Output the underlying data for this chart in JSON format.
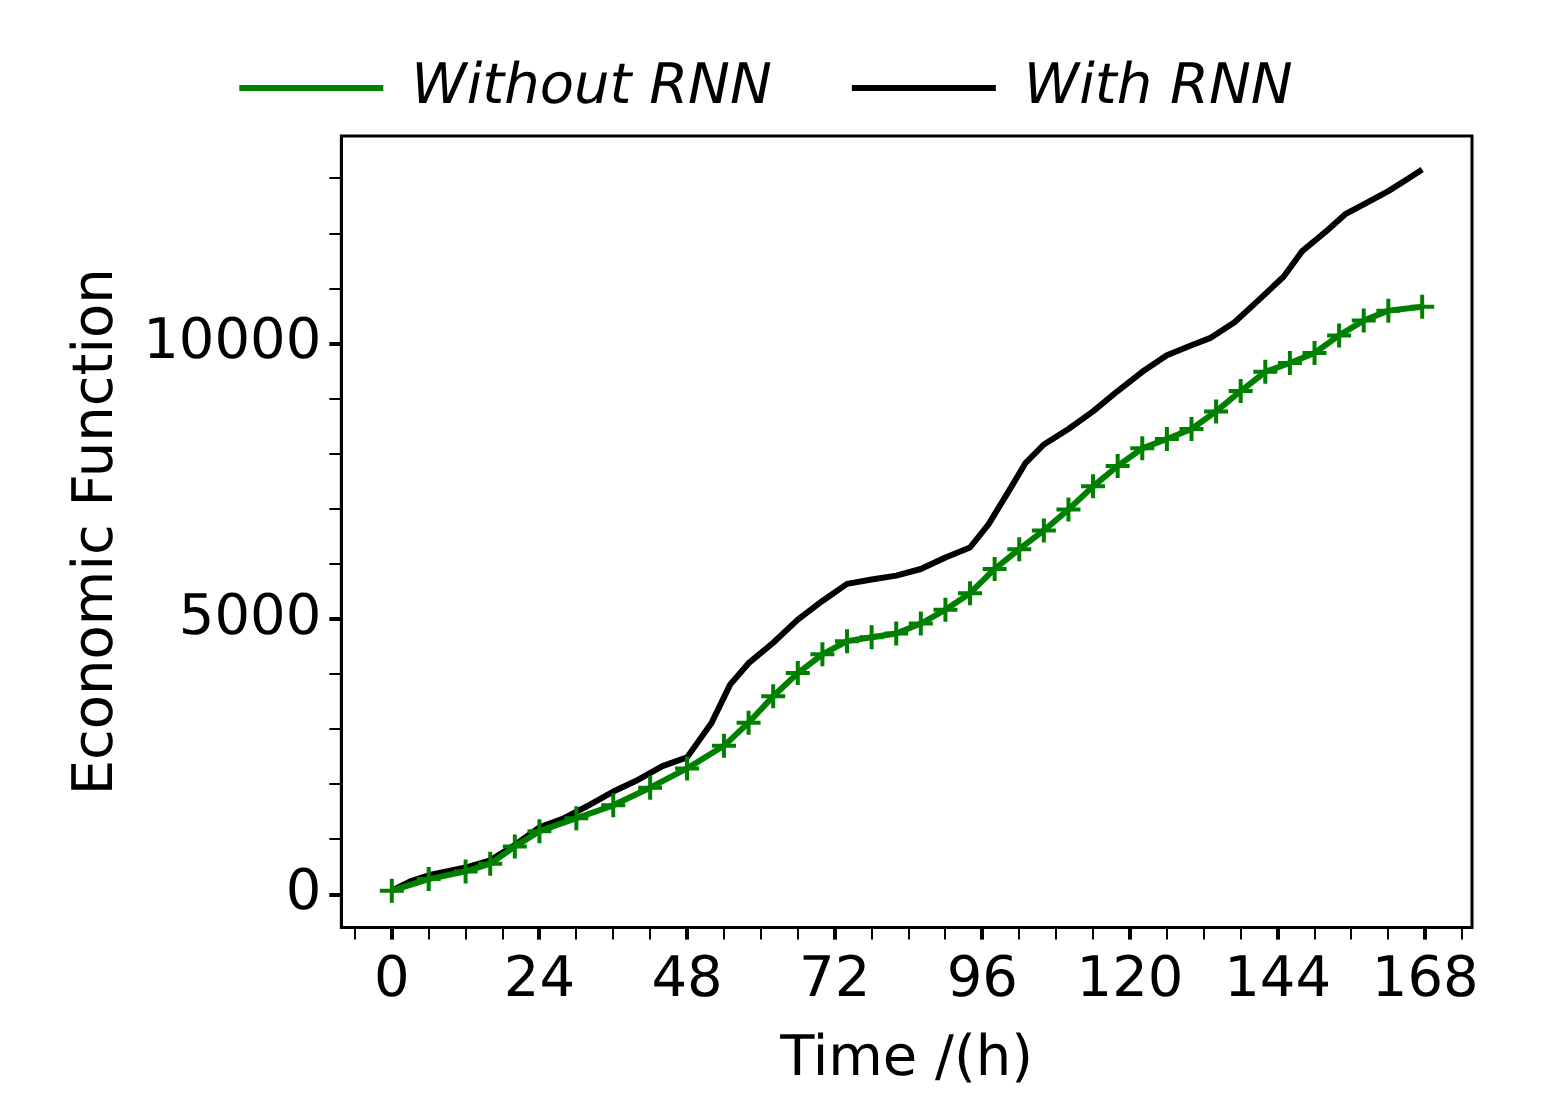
{
  "chart_data": {
    "type": "line",
    "xlabel": "Time /(h)",
    "ylabel": "Economic Function",
    "xlim": [
      -8.2,
      175.6
    ],
    "ylim": [
      -600,
      13770
    ],
    "xticks": [
      {
        "value": -6,
        "label": null
      },
      0,
      {
        "value": 6,
        "label": null
      },
      {
        "value": 12,
        "label": null
      },
      {
        "value": 18,
        "label": null
      },
      24,
      {
        "value": 30,
        "label": null
      },
      {
        "value": 36,
        "label": null
      },
      {
        "value": 42,
        "label": null
      },
      48,
      {
        "value": 54,
        "label": null
      },
      {
        "value": 60,
        "label": null
      },
      {
        "value": 66,
        "label": null
      },
      72,
      {
        "value": 78,
        "label": null
      },
      {
        "value": 84,
        "label": null
      },
      {
        "value": 90,
        "label": null
      },
      96,
      {
        "value": 102,
        "label": null
      },
      {
        "value": 108,
        "label": null
      },
      {
        "value": 114,
        "label": null
      },
      120,
      {
        "value": 126,
        "label": null
      },
      {
        "value": 132,
        "label": null
      },
      {
        "value": 138,
        "label": null
      },
      144,
      {
        "value": 150,
        "label": null
      },
      {
        "value": 156,
        "label": null
      },
      {
        "value": 162,
        "label": null
      },
      168,
      {
        "value": 174,
        "label": null
      }
    ],
    "yticks": [
      0,
      {
        "value": 1000,
        "label": null
      },
      {
        "value": 2000,
        "label": null
      },
      {
        "value": 3000,
        "label": null
      },
      {
        "value": 4000,
        "label": null
      },
      5000,
      {
        "value": 6000,
        "label": null
      },
      {
        "value": 7000,
        "label": null
      },
      {
        "value": 8000,
        "label": null
      },
      {
        "value": 9000,
        "label": null
      },
      10000,
      {
        "value": 11000,
        "label": null
      },
      {
        "value": 12000,
        "label": null
      },
      {
        "value": 13000,
        "label": null
      }
    ],
    "grid": false,
    "legend": "top",
    "series": [
      {
        "name": "Without RNN",
        "color": "#008000",
        "marker": "cross",
        "x": [
          0,
          6,
          12,
          16,
          20,
          24,
          30,
          36,
          42,
          48,
          54,
          58,
          62,
          66,
          70,
          74,
          78,
          82,
          86,
          90,
          94,
          98,
          102,
          106,
          110,
          114,
          118,
          122,
          126,
          130,
          134,
          138,
          142,
          146,
          150,
          154,
          158,
          162,
          167.5
        ],
        "values": [
          70,
          280,
          420,
          560,
          870,
          1150,
          1385,
          1620,
          1940,
          2290,
          2700,
          3120,
          3600,
          4020,
          4360,
          4600,
          4670,
          4740,
          4920,
          5170,
          5470,
          5910,
          6270,
          6610,
          6990,
          7410,
          7780,
          8100,
          8270,
          8450,
          8770,
          9140,
          9490,
          9650,
          9830,
          10150,
          10420,
          10600,
          10670
        ]
      },
      {
        "name": "With RNN",
        "color": "#000000",
        "marker": "none",
        "x": [
          0,
          3,
          6,
          12,
          16,
          20,
          24,
          28,
          32,
          36,
          40,
          44,
          48,
          52,
          55,
          58,
          62,
          66,
          70,
          74,
          78,
          82,
          86,
          90,
          94,
          97,
          100,
          103,
          106,
          110,
          114,
          118,
          122,
          126,
          130,
          133,
          137,
          141,
          145,
          148,
          152,
          155,
          158,
          162,
          165,
          167.5
        ],
        "values": [
          70,
          240,
          350,
          490,
          620,
          900,
          1220,
          1385,
          1620,
          1870,
          2080,
          2330,
          2490,
          3120,
          3810,
          4200,
          4570,
          4990,
          5330,
          5640,
          5720,
          5790,
          5910,
          6120,
          6300,
          6720,
          7270,
          7830,
          8170,
          8450,
          8770,
          9140,
          9490,
          9790,
          9970,
          10100,
          10390,
          10800,
          11220,
          11680,
          12050,
          12350,
          12530,
          12770,
          12980,
          13160
        ]
      }
    ]
  }
}
